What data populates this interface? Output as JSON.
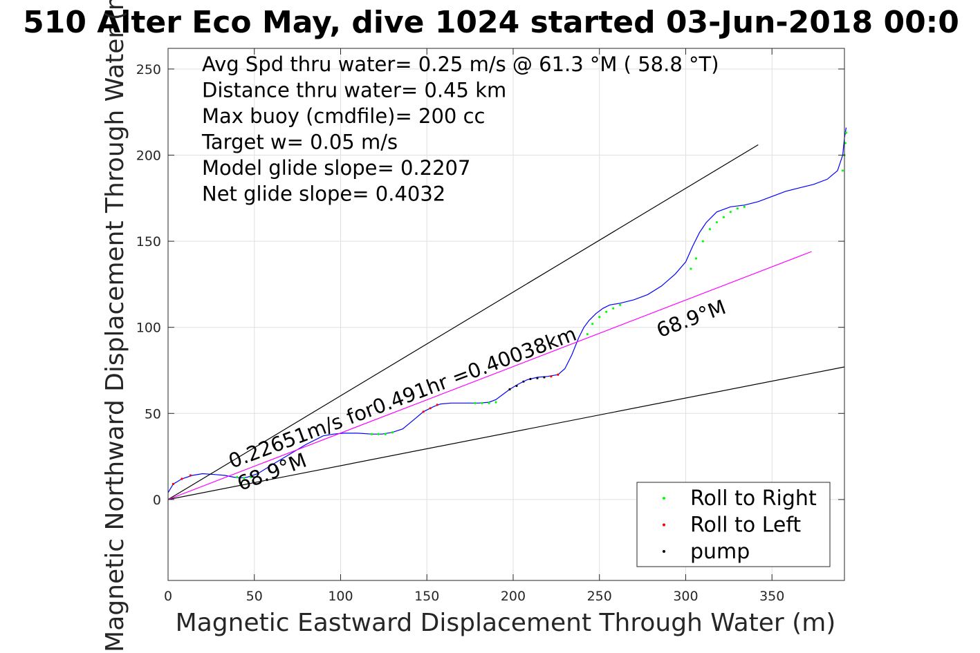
{
  "chart_data": {
    "type": "line",
    "title": "510 Alter Eco May, dive 1024 started 03-Jun-2018 00:0",
    "xlabel": "Magnetic Eastward Displacement Through Water (m)",
    "ylabel": "Magnetic Northward Displacement Through Water (m)",
    "xlim": [
      0,
      392
    ],
    "ylim": [
      -47,
      262
    ],
    "xticks": [
      0,
      50,
      100,
      150,
      200,
      250,
      300,
      350
    ],
    "yticks": [
      0,
      50,
      100,
      150,
      200,
      250
    ],
    "grid": true,
    "legend_position": "bottom-right",
    "legend": [
      {
        "label": "Roll to Right",
        "color": "#00ff00"
      },
      {
        "label": "Roll to Left",
        "color": "#ff0000"
      },
      {
        "label": "pump",
        "color": "#000000"
      }
    ],
    "info_text": [
      "Avg Spd thru water=  0.25 m/s @  61.3 °M ( 58.8 °T)",
      "Distance thru water=  0.45 km",
      "Max buoy (cmdfile)= 200 cc",
      "Target w= 0.05 m/s",
      "Model glide slope= 0.2207",
      "Net glide slope= 0.4032"
    ],
    "annotations": [
      {
        "text": "0.22651m/s for0.491hr =0.40038km",
        "x": 37,
        "y": 18,
        "angle": 20.5
      },
      {
        "text": "68.9°M",
        "x": 42,
        "y": 5,
        "angle": 20.5
      },
      {
        "text": "68.9°M",
        "x": 285,
        "y": 94,
        "angle": 20.5
      }
    ],
    "series": [
      {
        "name": "track",
        "color": "#0000ff",
        "x": [
          0,
          3,
          8,
          14,
          20,
          27,
          33,
          38,
          42,
          46,
          52,
          60,
          70,
          80,
          90,
          96,
          102,
          110,
          118,
          124,
          130,
          136,
          142,
          148,
          154,
          158,
          164,
          172,
          180,
          186,
          190,
          194,
          198,
          203,
          208,
          214,
          220,
          226,
          230,
          234,
          238,
          241,
          244,
          248,
          252,
          256,
          262,
          270,
          278,
          286,
          294,
          300,
          304,
          308,
          312,
          318,
          326,
          334,
          342,
          350,
          358,
          366,
          374,
          382,
          388,
          391,
          392,
          393
        ],
        "y": [
          4,
          9,
          12,
          14,
          15,
          14.5,
          14,
          13,
          12.5,
          13,
          15,
          20,
          26,
          32,
          37,
          38,
          38.5,
          38.5,
          38,
          38,
          39,
          41,
          46,
          51,
          54,
          55.5,
          56,
          56,
          56,
          56.5,
          58,
          61,
          64,
          67,
          69.5,
          71,
          71.5,
          72.5,
          76,
          84,
          94,
          100,
          104,
          108,
          111,
          113,
          114,
          116,
          119,
          124,
          131,
          138,
          147,
          155,
          161,
          167,
          170,
          171,
          173,
          176,
          179,
          181,
          183,
          186,
          191,
          200,
          210,
          216
        ]
      },
      {
        "name": "glide-line-upper",
        "color": "#000000",
        "x": [
          0,
          342
        ],
        "y": [
          0,
          206
        ]
      },
      {
        "name": "glide-line-lower",
        "color": "#000000",
        "x": [
          0,
          392
        ],
        "y": [
          0,
          77
        ]
      },
      {
        "name": "net-glide-line",
        "color": "#ff00ff",
        "x": [
          0,
          373
        ],
        "y": [
          0,
          144
        ]
      }
    ],
    "markers": {
      "roll_right": {
        "color": "#00ff00",
        "x": [
          40,
          44,
          48,
          118,
          122,
          126,
          130,
          178,
          182,
          186,
          190,
          243,
          246,
          250,
          254,
          258,
          262,
          303,
          306,
          310,
          314,
          318,
          322,
          326,
          330,
          334,
          391,
          392,
          392.5,
          393
        ],
        "y": [
          13,
          12.5,
          13,
          38,
          38,
          38,
          39,
          56,
          56,
          56,
          56.5,
          96,
          102,
          106,
          109,
          111,
          113,
          134,
          140,
          150,
          157,
          161,
          164,
          167,
          169,
          170,
          191,
          200,
          207,
          213
        ]
      },
      "roll_left": {
        "color": "#ff0000",
        "x": [
          3,
          8,
          13,
          148,
          152,
          156,
          222,
          226
        ],
        "y": [
          9,
          12,
          14,
          51,
          53,
          55,
          71.5,
          72.5
        ]
      },
      "pump": {
        "color": "#000000",
        "x": [
          198,
          202,
          206,
          210,
          214,
          218
        ],
        "y": [
          64,
          66,
          68.5,
          70,
          70.5,
          71
        ]
      }
    }
  }
}
